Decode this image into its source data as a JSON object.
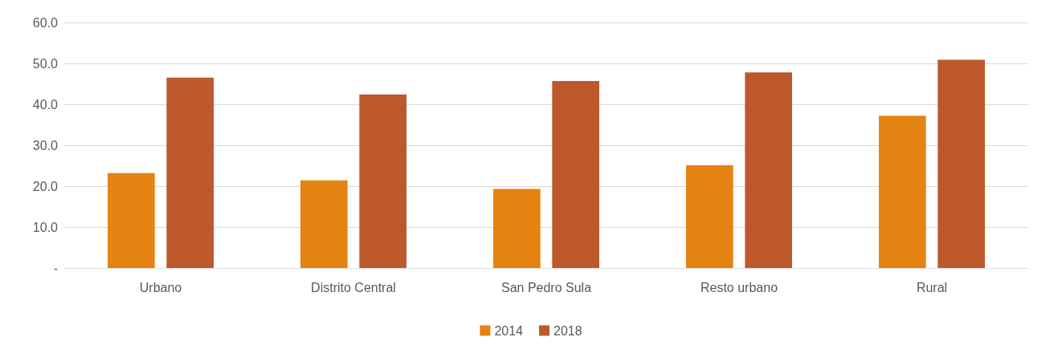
{
  "chart_data": {
    "type": "bar",
    "categories": [
      "Urbano",
      "Distrito Central",
      "San Pedro Sula",
      "Resto urbano",
      "Rural"
    ],
    "series": [
      {
        "name": "2014",
        "color": "#e48312",
        "values": [
          23.2,
          21.4,
          19.3,
          25.1,
          37.2
        ]
      },
      {
        "name": "2018",
        "color": "#bd582c",
        "values": [
          46.5,
          42.4,
          45.7,
          47.8,
          50.9
        ]
      }
    ],
    "ylim": [
      0,
      60
    ],
    "yticks": [
      {
        "value": 0,
        "label": "-"
      },
      {
        "value": 10,
        "label": "10.0"
      },
      {
        "value": 20,
        "label": "20.0"
      },
      {
        "value": 30,
        "label": "30.0"
      },
      {
        "value": 40,
        "label": "40.0"
      },
      {
        "value": 50,
        "label": "50.0"
      },
      {
        "value": 60,
        "label": "60.0"
      }
    ],
    "grid": "y",
    "legend": "bottom"
  }
}
